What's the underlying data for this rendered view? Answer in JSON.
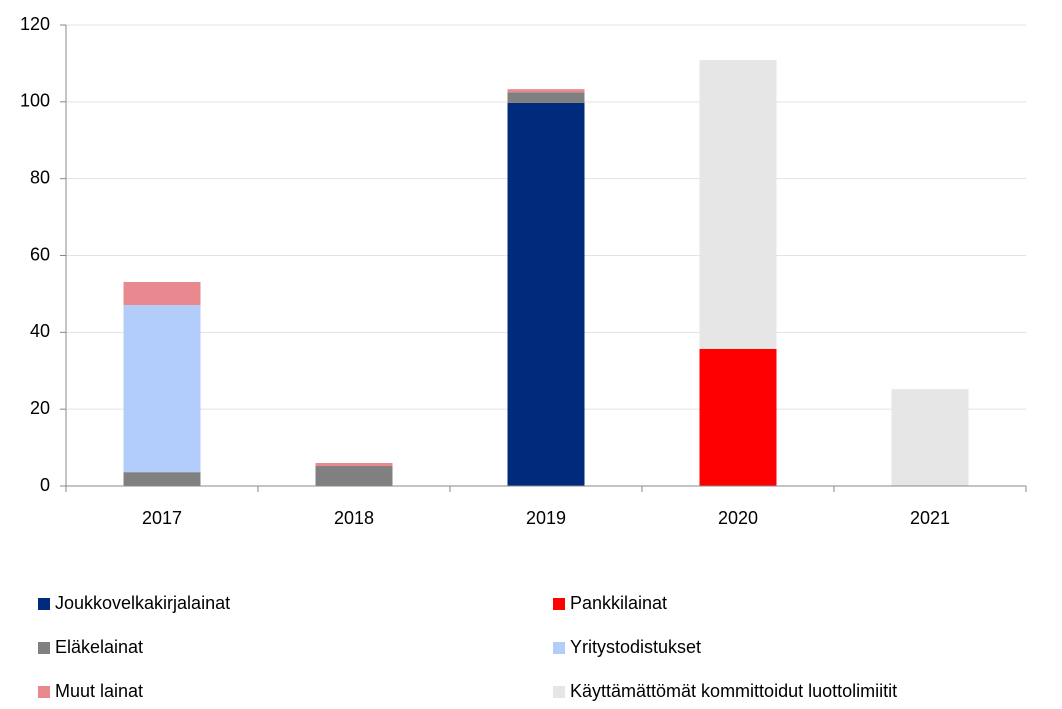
{
  "chart_data": {
    "type": "stacked_bar",
    "categories": [
      "2017",
      "2018",
      "2019",
      "2020",
      "2021"
    ],
    "series": [
      {
        "name": "Joukkovelkakirjalainat",
        "color": "#002a7c",
        "values": [
          null,
          null,
          99.7,
          null,
          null
        ]
      },
      {
        "name": "Pankkilainat",
        "color": "#ff0000",
        "values": [
          null,
          null,
          null,
          35.7,
          null
        ]
      },
      {
        "name": "Eläkelainat",
        "color": "#808080",
        "values": [
          3.6,
          5.2,
          2.8,
          null,
          null
        ]
      },
      {
        "name": "Yritystodistukset",
        "color": "#b3cdfb",
        "values": [
          43.5,
          null,
          null,
          null,
          null
        ]
      },
      {
        "name": "Muut lainat",
        "color": "#e8888f",
        "values": [
          6,
          0.8,
          0.8,
          null,
          null
        ]
      },
      {
        "name": "Käyttämättömät kommittoidut luottolimiitit",
        "color": "#e6e6e6",
        "values": [
          null,
          null,
          null,
          75.2,
          25.2
        ]
      }
    ],
    "ylim": [
      0,
      120
    ],
    "yticks": [
      0,
      20,
      40,
      60,
      80,
      100,
      120
    ],
    "grid": true
  }
}
